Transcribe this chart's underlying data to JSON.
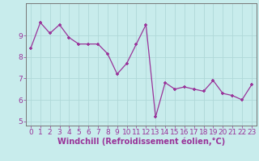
{
  "x": [
    0,
    1,
    2,
    3,
    4,
    5,
    6,
    7,
    8,
    9,
    10,
    11,
    12,
    13,
    14,
    15,
    16,
    17,
    18,
    19,
    20,
    21,
    22,
    23
  ],
  "y": [
    8.4,
    9.6,
    9.1,
    9.5,
    8.9,
    8.6,
    8.6,
    8.6,
    8.15,
    7.2,
    7.7,
    8.6,
    9.5,
    5.2,
    6.8,
    6.5,
    6.6,
    6.5,
    6.4,
    6.9,
    6.3,
    6.2,
    6.0,
    6.7
  ],
  "line_color": "#993399",
  "marker_color": "#993399",
  "bg_color": "#c8ecec",
  "grid_color": "#b0d8d8",
  "axis_color": "#666666",
  "tick_color": "#993399",
  "xlabel": "Windchill (Refroidissement éolien,°C)",
  "ylim": [
    4.8,
    10.5
  ],
  "xlim": [
    -0.5,
    23.5
  ],
  "yticks": [
    5,
    6,
    7,
    8,
    9
  ],
  "xticks": [
    0,
    1,
    2,
    3,
    4,
    5,
    6,
    7,
    8,
    9,
    10,
    11,
    12,
    13,
    14,
    15,
    16,
    17,
    18,
    19,
    20,
    21,
    22,
    23
  ],
  "font_size": 6.5,
  "xlabel_fontsize": 7,
  "marker_size": 3.5,
  "line_width": 0.9
}
